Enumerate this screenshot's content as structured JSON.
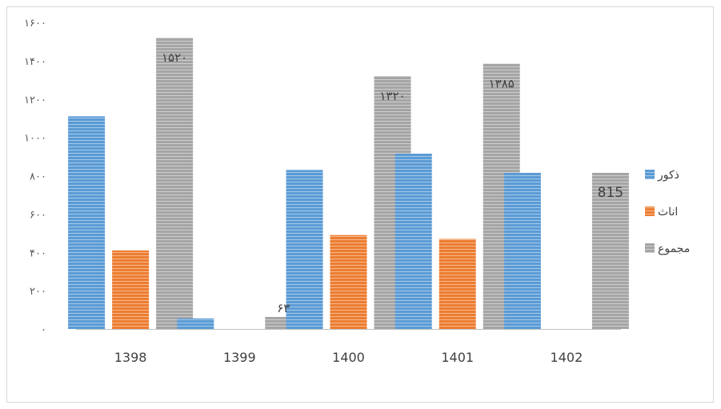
{
  "chart_data": {
    "type": "bar",
    "categories": [
      "1398",
      "1399",
      "1400",
      "1401",
      "1402"
    ],
    "series": [
      {
        "name": "ذکور",
        "values": [
          1110,
          55,
          830,
          915,
          815
        ],
        "color": "#5b9bd5"
      },
      {
        "name": "اناث",
        "values": [
          410,
          0,
          490,
          470,
          0
        ],
        "color": "#ed7d31"
      },
      {
        "name": "مجموع",
        "values": [
          1520,
          63,
          1320,
          1385,
          815
        ],
        "color": "#a5a5a5"
      }
    ],
    "data_labels": [
      {
        "series": 2,
        "index": 0,
        "text": "۱۵۲۰"
      },
      {
        "series": 2,
        "index": 1,
        "text": "۶۳"
      },
      {
        "series": 2,
        "index": 2,
        "text": "۱۳۲۰"
      },
      {
        "series": 2,
        "index": 3,
        "text": "۱۳۸۵"
      },
      {
        "series": 2,
        "index": 4,
        "text": "815"
      }
    ],
    "y_ticks": [
      {
        "value": 0,
        "label": "۰"
      },
      {
        "value": 200,
        "label": "۲۰۰"
      },
      {
        "value": 400,
        "label": "۴۰۰"
      },
      {
        "value": 600,
        "label": "۶۰۰"
      },
      {
        "value": 800,
        "label": "۸۰۰"
      },
      {
        "value": 1000,
        "label": "۱۰۰۰"
      },
      {
        "value": 1200,
        "label": "۱۲۰۰"
      },
      {
        "value": 1400,
        "label": "۱۴۰۰"
      },
      {
        "value": 1600,
        "label": "۱۶۰۰"
      }
    ],
    "ylim": [
      0,
      1600
    ],
    "grid": false,
    "legend_position": "right",
    "bar_pattern": "horizontal-stripes",
    "title": "",
    "xlabel": "",
    "ylabel": ""
  }
}
